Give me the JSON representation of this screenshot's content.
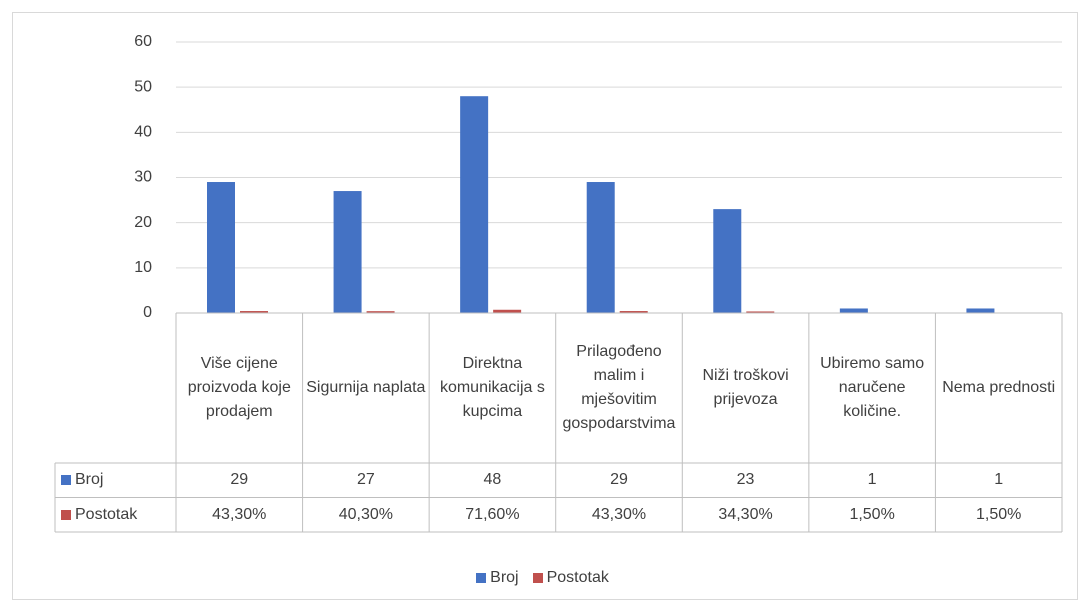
{
  "chart_data": {
    "type": "bar",
    "categories": [
      "Više cijene proizvoda koje prodajem",
      "Sigurnija naplata",
      "Direktna komunikacija s kupcima",
      "Prilagođeno malim i mješovitim gospodarstvima",
      "Niži troškovi prijevoza",
      "Ubiremo samo naručene količine.",
      "Nema prednosti"
    ],
    "series": [
      {
        "name": "Broj",
        "color": "#4472c4",
        "values": [
          29,
          27,
          48,
          29,
          23,
          1,
          1
        ]
      },
      {
        "name": "Postotak",
        "color": "#c0504d",
        "values": [
          0.433,
          0.403,
          0.716,
          0.433,
          0.343,
          0.015,
          0.015
        ],
        "value_labels": [
          "43,30%",
          "40,30%",
          "71,60%",
          "43,30%",
          "34,30%",
          "1,50%",
          "1,50%"
        ]
      }
    ],
    "ylim": [
      0,
      60
    ],
    "yticks": [
      0,
      10,
      20,
      30,
      40,
      50,
      60
    ],
    "grid": true,
    "legend": "bottom",
    "data_table": true
  }
}
